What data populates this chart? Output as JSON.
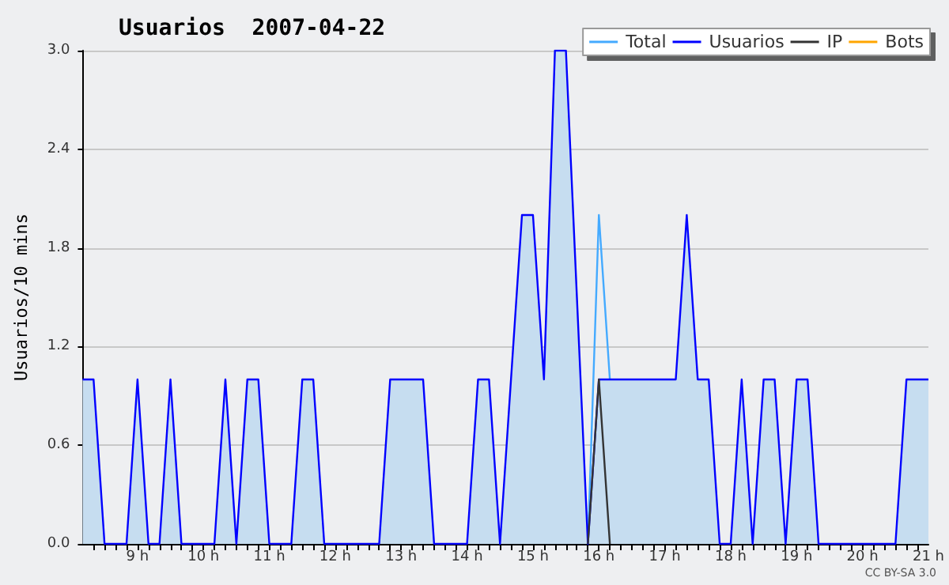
{
  "chart_data": {
    "type": "line",
    "title": "Usuarios  2007-04-22",
    "ylabel": "Usuarios/10 mins",
    "annotations": [
      "CC BY-SA 3.0"
    ],
    "x": [
      8.1667,
      8.3333,
      8.5,
      8.6667,
      8.8333,
      9,
      9.1667,
      9.3333,
      9.5,
      9.6667,
      9.8333,
      10,
      10.1667,
      10.3333,
      10.5,
      10.6667,
      10.8333,
      11,
      11.1667,
      11.3333,
      11.5,
      11.6667,
      11.8333,
      12,
      12.1667,
      12.3333,
      12.5,
      12.6667,
      12.8333,
      13,
      13.1667,
      13.3333,
      13.5,
      13.6667,
      13.8333,
      14,
      14.1667,
      14.3333,
      14.5,
      14.6667,
      14.8333,
      15,
      15.1667,
      15.3333,
      15.5,
      15.6667,
      15.8333,
      16,
      16.1667,
      16.3333,
      16.5,
      16.6667,
      16.8333,
      17,
      17.1667,
      17.3333,
      17.5,
      17.6667,
      17.8333,
      18,
      18.1667,
      18.3333,
      18.5,
      18.6667,
      18.8333,
      19,
      19.1667,
      19.3333,
      19.5,
      19.6667,
      19.8333,
      20,
      20.1667,
      20.3333,
      20.5,
      20.6667,
      20.8333,
      21
    ],
    "series": [
      {
        "name": "Total",
        "type": "line",
        "color": "#44aaff",
        "values": [
          null,
          null,
          null,
          null,
          null,
          null,
          null,
          null,
          null,
          null,
          null,
          null,
          null,
          null,
          null,
          null,
          null,
          null,
          null,
          null,
          null,
          null,
          null,
          null,
          null,
          null,
          null,
          null,
          null,
          null,
          null,
          null,
          null,
          null,
          null,
          null,
          null,
          null,
          null,
          null,
          null,
          null,
          null,
          null,
          null,
          null,
          0,
          2,
          1,
          null,
          null,
          null,
          null,
          null,
          null,
          null,
          null,
          null,
          null,
          null,
          null,
          null,
          null,
          null,
          null,
          null,
          null,
          null,
          null,
          null,
          null,
          null,
          null,
          null,
          null,
          null,
          null,
          null
        ]
      },
      {
        "name": "Usuarios",
        "type": "area",
        "color": "#0000ff",
        "values": [
          1,
          1,
          0,
          0,
          0,
          1,
          0,
          0,
          1,
          0,
          0,
          0,
          0,
          1,
          0,
          1,
          1,
          0,
          0,
          0,
          1,
          1,
          0,
          0,
          0,
          0,
          0,
          0,
          1,
          1,
          1,
          1,
          0,
          0,
          0,
          0,
          1,
          1,
          0,
          1,
          2,
          2,
          1,
          3,
          3,
          1.5,
          0,
          1,
          1,
          1,
          1,
          1,
          1,
          1,
          1,
          2,
          1,
          1,
          0,
          0,
          1,
          0,
          1,
          1,
          0,
          1,
          1,
          0,
          0,
          0,
          0,
          0,
          0,
          0,
          0,
          1,
          1,
          1
        ]
      },
      {
        "name": "IP",
        "color": "#333333",
        "values": [
          null,
          null,
          null,
          null,
          null,
          null,
          null,
          null,
          null,
          null,
          null,
          null,
          null,
          null,
          null,
          null,
          null,
          null,
          null,
          null,
          null,
          null,
          null,
          null,
          null,
          null,
          null,
          null,
          null,
          null,
          null,
          null,
          null,
          null,
          null,
          null,
          null,
          null,
          null,
          null,
          null,
          null,
          null,
          null,
          null,
          null,
          0,
          1,
          0,
          null,
          null,
          null,
          null,
          null,
          null,
          null,
          null,
          null,
          null,
          null,
          null,
          null,
          null,
          null,
          null,
          null,
          null,
          null,
          null,
          null,
          null,
          null,
          null,
          null,
          null,
          null,
          null,
          null
        ]
      },
      {
        "name": "Bots",
        "color": "#ffa500",
        "values": [
          null,
          null,
          null,
          null,
          null,
          null,
          null,
          null,
          null,
          null,
          null,
          null,
          null,
          null,
          null,
          null,
          null,
          null,
          null,
          null,
          null,
          null,
          null,
          null,
          null,
          null,
          null,
          null,
          null,
          null,
          null,
          null,
          null,
          null,
          null,
          null,
          null,
          null,
          null,
          null,
          null,
          null,
          null,
          null,
          null,
          null,
          null,
          null,
          null,
          null,
          null,
          null,
          null,
          null,
          null,
          null,
          null,
          null,
          null,
          null,
          null,
          null,
          null,
          null,
          null,
          null,
          null,
          null,
          null,
          null,
          null,
          null,
          null,
          null,
          null,
          null,
          null,
          null
        ]
      }
    ],
    "xlim": [
      8.1667,
      21
    ],
    "xticks": [
      {
        "value": 9,
        "label": "9 h"
      },
      {
        "value": 10,
        "label": "10 h"
      },
      {
        "value": 11,
        "label": "11 h"
      },
      {
        "value": 12,
        "label": "12 h"
      },
      {
        "value": 13,
        "label": "13 h"
      },
      {
        "value": 14,
        "label": "14 h"
      },
      {
        "value": 15,
        "label": "15 h"
      },
      {
        "value": 16,
        "label": "16 h"
      },
      {
        "value": 17,
        "label": "17 h"
      },
      {
        "value": 18,
        "label": "18 h"
      },
      {
        "value": 19,
        "label": "19 h"
      },
      {
        "value": 20,
        "label": "20 h"
      },
      {
        "value": 21,
        "label": "21 h"
      }
    ],
    "ylim": [
      0,
      3
    ],
    "yticks": [
      {
        "value": 0,
        "label": "0.0"
      },
      {
        "value": 0.6,
        "label": "0.6"
      },
      {
        "value": 1.2,
        "label": "1.2"
      },
      {
        "value": 1.8,
        "label": "1.8"
      },
      {
        "value": 2.4,
        "label": "2.4"
      },
      {
        "value": 3,
        "label": "3.0"
      }
    ],
    "grid": "y",
    "legend": "top right",
    "marker": "none",
    "line_style": "solid"
  }
}
